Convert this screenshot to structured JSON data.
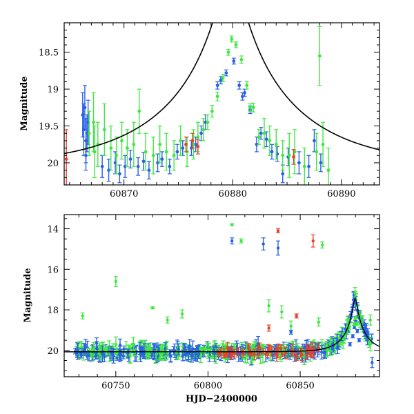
{
  "chart_data": [
    {
      "type": "scatter",
      "title": "",
      "xlabel": "",
      "ylabel": "Magnitude",
      "xlim": [
        60864.5,
        60893.5
      ],
      "ylim": [
        20.3,
        18.1
      ],
      "y_inverted": true,
      "x_ticks": [
        60870,
        60880,
        60890
      ],
      "y_ticks": [
        18.5,
        19,
        19.5,
        20
      ],
      "y_tick_labels": [
        "18.5",
        "19",
        "19.5",
        "20"
      ],
      "model_curve": {
        "t0": 60879.8,
        "u0": 0.09,
        "tE": 12.0,
        "baseline": 20.07,
        "color": "#000000"
      },
      "series": [
        {
          "color": "#2a5fe8",
          "points": [
            [
              60866.2,
              19.35,
              0.3
            ],
            [
              60866.3,
              19.55,
              0.35
            ],
            [
              60866.4,
              19.25,
              0.3
            ],
            [
              60866.5,
              19.7,
              0.3
            ],
            [
              60866.6,
              19.6,
              0.25
            ],
            [
              60866.7,
              19.45,
              0.3
            ],
            [
              60866.5,
              19.9,
              0.2
            ],
            [
              60868.0,
              20.05,
              0.15
            ],
            [
              60868.6,
              20.1,
              0.15
            ],
            [
              60869.2,
              20.0,
              0.15
            ],
            [
              60869.6,
              20.15,
              0.12
            ],
            [
              60870.1,
              20.05,
              0.15
            ],
            [
              60870.6,
              19.95,
              0.12
            ],
            [
              60871.3,
              20.05,
              0.12
            ],
            [
              60871.8,
              19.98,
              0.12
            ],
            [
              60872.3,
              20.1,
              0.12
            ],
            [
              60873.1,
              20.0,
              0.12
            ],
            [
              60873.5,
              19.95,
              0.1
            ],
            [
              60874.2,
              20.05,
              0.1
            ],
            [
              60874.9,
              19.85,
              0.1
            ],
            [
              60875.4,
              19.8,
              0.1
            ],
            [
              60876.2,
              19.8,
              0.1
            ],
            [
              60876.6,
              19.75,
              0.1
            ],
            [
              60877.1,
              19.6,
              0.1
            ],
            [
              60877.5,
              19.45,
              0.1
            ],
            [
              60878.6,
              18.95,
              0.05
            ],
            [
              60879.4,
              18.78,
              0.04
            ],
            [
              60880.1,
              18.62,
              0.04
            ],
            [
              60880.6,
              18.95,
              0.05
            ],
            [
              60881.1,
              19.05,
              0.05
            ],
            [
              60881.6,
              19.28,
              0.05
            ],
            [
              60882.6,
              19.6,
              0.08
            ],
            [
              60883.1,
              19.68,
              0.1
            ],
            [
              60883.6,
              19.85,
              0.1
            ],
            [
              60884.1,
              19.88,
              0.1
            ],
            [
              60884.6,
              20.15,
              0.12
            ],
            [
              60885.1,
              19.92,
              0.12
            ],
            [
              60886.1,
              20.0,
              0.15
            ],
            [
              60887.0,
              20.05,
              0.15
            ],
            [
              60887.5,
              19.7,
              0.15
            ],
            [
              60888.1,
              20.0,
              0.12
            ],
            [
              60882.2,
              19.75,
              0.1
            ],
            [
              60878.9,
              18.88,
              0.05
            ],
            [
              60880.9,
              19.1,
              0.05
            ]
          ]
        },
        {
          "color": "#3fe83f",
          "points": [
            [
              60866.8,
              19.6,
              0.3
            ],
            [
              60867.2,
              19.45,
              0.4
            ],
            [
              60867.6,
              19.75,
              0.3
            ],
            [
              60868.2,
              19.55,
              0.35
            ],
            [
              60868.8,
              19.8,
              0.3
            ],
            [
              60869.3,
              19.9,
              0.25
            ],
            [
              60869.8,
              19.7,
              0.25
            ],
            [
              60870.3,
              19.8,
              0.25
            ],
            [
              60870.9,
              19.75,
              0.3
            ],
            [
              60871.4,
              19.3,
              0.3
            ],
            [
              60872.0,
              19.85,
              0.25
            ],
            [
              60872.7,
              19.9,
              0.25
            ],
            [
              60873.3,
              19.75,
              0.25
            ],
            [
              60873.9,
              19.85,
              0.25
            ],
            [
              60874.6,
              19.9,
              0.2
            ],
            [
              60875.2,
              19.7,
              0.2
            ],
            [
              60875.8,
              19.85,
              0.2
            ],
            [
              60876.4,
              19.75,
              0.2
            ],
            [
              60876.8,
              19.65,
              0.2
            ],
            [
              60877.3,
              19.55,
              0.15
            ],
            [
              60877.7,
              19.45,
              0.1
            ],
            [
              60878.1,
              19.3,
              0.08
            ],
            [
              60878.6,
              19.1,
              0.06
            ],
            [
              60879.1,
              18.85,
              0.05
            ],
            [
              60879.6,
              18.5,
              0.04
            ],
            [
              60879.9,
              18.32,
              0.04
            ],
            [
              60880.3,
              18.4,
              0.04
            ],
            [
              60880.8,
              18.6,
              0.05
            ],
            [
              60881.3,
              18.95,
              0.05
            ],
            [
              60881.6,
              19.25,
              0.05
            ],
            [
              60881.9,
              19.25,
              0.06
            ],
            [
              60882.4,
              19.65,
              0.1
            ],
            [
              60882.9,
              19.6,
              0.2
            ],
            [
              60883.4,
              19.7,
              0.2
            ],
            [
              60884.0,
              19.75,
              0.2
            ],
            [
              60884.6,
              19.9,
              0.2
            ],
            [
              60885.2,
              19.9,
              0.3
            ],
            [
              60885.7,
              19.85,
              0.3
            ],
            [
              60886.6,
              20.05,
              0.25
            ],
            [
              60887.7,
              19.85,
              0.25
            ],
            [
              60888.0,
              18.55,
              0.4
            ],
            [
              60888.3,
              19.75,
              0.3
            ],
            [
              60888.8,
              20.1,
              0.3
            ],
            [
              60867.3,
              19.85,
              0.35
            ]
          ]
        },
        {
          "color": "#e8402a",
          "points": [
            [
              60864.7,
              19.95,
              0.4
            ],
            [
              60875.7,
              19.75,
              0.1
            ],
            [
              60876.3,
              19.7,
              0.1
            ],
            [
              60876.8,
              19.78,
              0.1
            ],
            [
              60885.6,
              19.92,
              0.1
            ]
          ]
        }
      ]
    },
    {
      "type": "scatter",
      "title": "",
      "xlabel": "HJD−2400000",
      "ylabel": "Magnitude",
      "xlim": [
        60722,
        60893
      ],
      "ylim": [
        21.3,
        13.3
      ],
      "y_inverted": true,
      "x_ticks": [
        60750,
        60800,
        60850
      ],
      "y_ticks": [
        14,
        16,
        18,
        20
      ],
      "y_tick_labels": [
        "14",
        "16",
        "18",
        "20"
      ],
      "model_curve": {
        "t0": 60879.8,
        "u0": 0.09,
        "tE": 12.0,
        "baseline": 20.07,
        "color": "#000000"
      },
      "outliers": [
        {
          "color": "#3fe83f",
          "points": [
            [
              60732,
              18.3,
              0.15
            ],
            [
              60750,
              16.6,
              0.25
            ],
            [
              60770,
              17.9,
              0.05
            ],
            [
              60778,
              18.5,
              0.15
            ],
            [
              60786,
              18.2,
              0.2
            ],
            [
              60813,
              13.8,
              0.05
            ],
            [
              60818,
              14.6,
              0.1
            ],
            [
              60833,
              17.8,
              0.3
            ],
            [
              60840,
              18.1,
              0.3
            ],
            [
              60845,
              18.8,
              0.25
            ],
            [
              60862,
              14.8,
              0.15
            ],
            [
              60888,
              18.5,
              0.25
            ],
            [
              60876,
              18.5,
              0.2
            ],
            [
              60860,
              18.6,
              0.2
            ]
          ]
        },
        {
          "color": "#2a5fe8",
          "points": [
            [
              60813,
              14.6,
              0.15
            ],
            [
              60830,
              14.75,
              0.3
            ],
            [
              60838,
              14.95,
              0.35
            ],
            [
              60845,
              19.1,
              0.1
            ],
            [
              60889,
              20.6,
              0.25
            ]
          ]
        },
        {
          "color": "#e8402a",
          "points": [
            [
              60838,
              14.1,
              0.1
            ],
            [
              60857,
              14.6,
              0.3
            ],
            [
              60848,
              18.3,
              0.1
            ],
            [
              60833,
              18.9,
              0.15
            ]
          ]
        }
      ]
    }
  ]
}
